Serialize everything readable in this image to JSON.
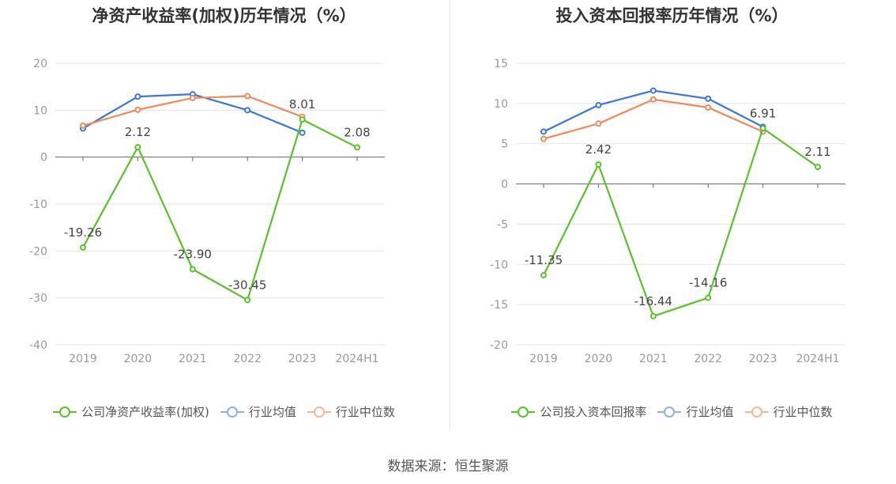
{
  "source": "数据来源：恒生聚源",
  "chart_data": [
    {
      "type": "line",
      "title": "净资产收益率(加权)历年情况（%）",
      "categories": [
        "2019",
        "2020",
        "2021",
        "2022",
        "2023",
        "2024H1"
      ],
      "ylim": [
        -40,
        20
      ],
      "yticks": [
        20,
        10,
        0,
        -10,
        -20,
        -30,
        -40
      ],
      "ytick_labels": [
        "20",
        "10",
        "0",
        "-10",
        "-20",
        "-30",
        "-40"
      ],
      "grid": true,
      "legend_position": "bottom",
      "series": [
        {
          "name": "公司净资产收益率(加权)",
          "color": "#5ac229",
          "values": [
            -19.26,
            2.12,
            -23.9,
            -30.45,
            8.01,
            2.08
          ],
          "labels": [
            "-19.26",
            "2.12",
            "-23.90",
            "-30.45",
            "8.01",
            "2.08"
          ]
        },
        {
          "name": "行业均值",
          "color": "#3a76db",
          "values": [
            6.1,
            12.9,
            13.4,
            10.0,
            5.2,
            null
          ]
        },
        {
          "name": "行业中位数",
          "color": "#f08a5d",
          "values": [
            6.7,
            10.1,
            12.6,
            13.0,
            8.6,
            null
          ]
        }
      ]
    },
    {
      "type": "line",
      "title": "投入资本回报率历年情况（%）",
      "categories": [
        "2019",
        "2020",
        "2021",
        "2022",
        "2023",
        "2024H1"
      ],
      "ylim": [
        -20,
        15
      ],
      "yticks": [
        15,
        10,
        5,
        0,
        -5,
        -10,
        -15,
        -20
      ],
      "ytick_labels": [
        "15",
        "10",
        "5",
        "0",
        "-5",
        "-10",
        "-15",
        "-20"
      ],
      "grid": true,
      "legend_position": "bottom",
      "series": [
        {
          "name": "公司投入资本回报率",
          "color": "#5ac229",
          "values": [
            -11.35,
            2.42,
            -16.44,
            -14.16,
            6.91,
            2.11
          ],
          "labels": [
            "-11.35",
            "2.42",
            "-16.44",
            "-14.16",
            "6.91",
            "2.11"
          ]
        },
        {
          "name": "行业均值",
          "color": "#3a76db",
          "values": [
            6.5,
            9.8,
            11.6,
            10.6,
            7.1,
            null
          ]
        },
        {
          "name": "行业中位数",
          "color": "#f08a5d",
          "values": [
            5.6,
            7.5,
            10.5,
            9.5,
            6.5,
            null
          ]
        }
      ]
    }
  ]
}
